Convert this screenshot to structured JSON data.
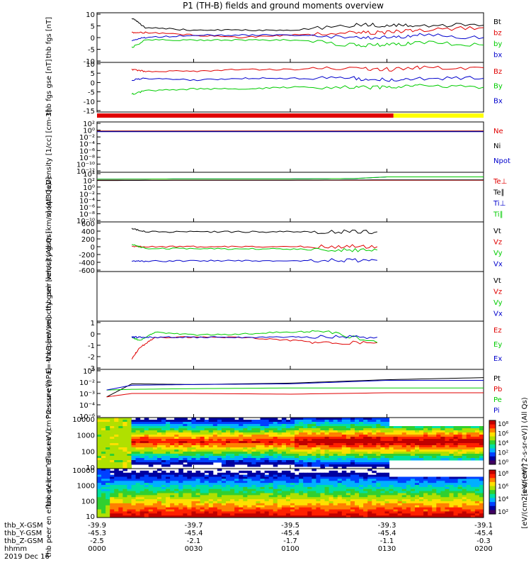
{
  "title": "P1 (TH-B) fields and ground moments overview",
  "time_axis": {
    "tick_labels": [
      "0000",
      "0030",
      "0100",
      "0130",
      "0200"
    ],
    "rows": [
      {
        "label": "thb_X-GSM",
        "values": [
          "-39.9",
          "-39.7",
          "-39.5",
          "-39.3",
          "-39.1"
        ]
      },
      {
        "label": "thb_Y-GSM",
        "values": [
          "-45.3",
          "-45.4",
          "-45.4",
          "-45.4",
          "-45.4"
        ]
      },
      {
        "label": "thb_Z-GSM",
        "values": [
          "-2.5",
          "-2.1",
          "-1.7",
          "-1.1",
          "-0.3"
        ]
      },
      {
        "label": "hhmm",
        "values": [
          "0000",
          "0030",
          "0100",
          "0130",
          "0200"
        ]
      }
    ],
    "date": "2019 Dec 16"
  },
  "colorbar": {
    "label": "[eV/(cm2-s-sr-eV)]",
    "label_top": "[eV/(cm^2-s-sr-eV)] (All Qs)",
    "ticks_top": [
      "10⁸",
      "10⁶",
      "10⁴",
      "10²",
      "10⁰"
    ],
    "ticks_bottom": [
      "10⁸",
      "10⁶",
      "10⁴",
      "10²"
    ]
  },
  "colors": {
    "black": "#000000",
    "red": "#e00000",
    "green": "#00cc00",
    "blue": "#0000cc",
    "yellow": "#ffff00"
  },
  "chart_data": [
    {
      "type": "line",
      "id": "panel-fgs-bt",
      "ylabel": "thb fgs [nT]",
      "ylim": [
        -10,
        10
      ],
      "yticks": [
        "10",
        "5",
        "0",
        "-5",
        "-10"
      ],
      "series": [
        {
          "name": "Bt",
          "color": "black",
          "x": [
            0.18,
            0.25,
            0.5,
            0.75,
            1.0,
            1.33,
            1.5,
            1.67,
            2.0
          ],
          "y": [
            8,
            4,
            3,
            3,
            3,
            5,
            5,
            5,
            5
          ]
        },
        {
          "name": "bz",
          "color": "red",
          "x": [
            0.18,
            0.25,
            0.5,
            0.75,
            1.0,
            1.33,
            1.5,
            1.67,
            2.0
          ],
          "y": [
            2,
            2,
            1,
            0,
            1,
            2,
            2,
            3,
            4
          ]
        },
        {
          "name": "by",
          "color": "green",
          "x": [
            0.18,
            0.25,
            0.5,
            0.75,
            1.0,
            1.33,
            1.5,
            1.67,
            2.0
          ],
          "y": [
            -4,
            -1,
            -1,
            -1,
            -1,
            -3,
            -3,
            -2,
            -3
          ]
        },
        {
          "name": "bx",
          "color": "blue",
          "x": [
            0.18,
            0.25,
            0.5,
            0.75,
            1.0,
            1.33,
            1.5,
            1.67,
            2.0
          ],
          "y": [
            -1,
            0,
            1,
            1,
            1,
            0,
            0,
            1,
            0
          ]
        }
      ]
    },
    {
      "type": "line",
      "id": "panel-fgs-gse",
      "ylabel": "thb fgs gse [nT]",
      "ylim": [
        -18,
        10
      ],
      "yticks": [
        "10",
        "5",
        "0",
        "-5",
        "-10",
        "-15"
      ],
      "series": [
        {
          "name": "Bz",
          "color": "red",
          "x": [
            0.18,
            0.25,
            0.5,
            0.75,
            1.0,
            1.33,
            1.5,
            1.67,
            2.0
          ],
          "y": [
            6,
            5,
            5,
            6,
            6,
            7,
            6,
            7,
            7
          ]
        },
        {
          "name": "By",
          "color": "green",
          "x": [
            0.18,
            0.25,
            0.5,
            0.75,
            1.0,
            1.33,
            1.5,
            1.67,
            2.0
          ],
          "y": [
            -8,
            -6,
            -5,
            -5,
            -4,
            -4,
            -4,
            -3,
            -4
          ]
        },
        {
          "name": "Bx",
          "color": "blue",
          "x": [
            0.18,
            0.25,
            0.5,
            0.75,
            1.0,
            1.33,
            1.5,
            1.67,
            2.0
          ],
          "y": [
            0,
            1,
            0,
            1,
            1,
            1,
            0,
            1,
            1
          ]
        }
      ]
    },
    {
      "type": "line",
      "id": "panel-density",
      "log": true,
      "ylabel": "Density [1/cc] [cm-3]",
      "ylim": [
        -12,
        3
      ],
      "yticks": [
        "10²",
        "10⁰",
        "10⁻²",
        "10⁻⁴",
        "10⁻⁶",
        "10⁻⁸",
        "10⁻¹⁰",
        "10⁻¹²"
      ],
      "series": [
        {
          "name": "Ne",
          "color": "red",
          "x": [
            0,
            0.5,
            1.0,
            1.5,
            2.0
          ],
          "y": [
            0.3,
            0.3,
            0.3,
            0.3,
            0.3
          ]
        },
        {
          "name": "Ni",
          "color": "black",
          "x": [
            0,
            0.5,
            1.0,
            1.5,
            2.0
          ],
          "y": [
            0.2,
            0.2,
            0.2,
            0.2,
            0.2
          ]
        },
        {
          "name": "Npot",
          "color": "blue",
          "x": [
            0,
            0.5,
            1.0,
            1.5,
            2.0
          ],
          "y": [
            0.1,
            0.1,
            0.1,
            0.1,
            0.1
          ]
        }
      ]
    },
    {
      "type": "line",
      "id": "panel-temperature",
      "log": true,
      "ylabel": "moqt3 [eV]",
      "ylim": [
        -10,
        5
      ],
      "yticks": [
        "10⁴",
        "10²",
        "10⁰",
        "10⁻²",
        "10⁻⁴",
        "10⁻⁶",
        "10⁻⁸",
        "10⁻¹⁰"
      ],
      "series": [
        {
          "name": "Te⊥",
          "color": "red",
          "x": [
            0,
            0.5,
            1.0,
            1.5,
            2.0
          ],
          "y": [
            2.6,
            2.6,
            2.6,
            2.6,
            2.6
          ]
        },
        {
          "name": "Te∥",
          "color": "black",
          "x": [
            0,
            0.5,
            1.0,
            1.5,
            2.0
          ],
          "y": [
            2.5,
            2.6,
            2.6,
            2.7,
            2.7
          ]
        },
        {
          "name": "Ti⊥",
          "color": "blue",
          "x": [
            0,
            0.5,
            1.0,
            1.33,
            1.5,
            2.0
          ],
          "y": [
            2.9,
            3.0,
            3.0,
            3.1,
            3.6,
            3.6
          ]
        },
        {
          "name": "Ti∥",
          "color": "green",
          "x": [
            0,
            0.5,
            1.0,
            1.33,
            1.5,
            2.0
          ],
          "y": [
            2.9,
            3.0,
            3.0,
            3.1,
            3.6,
            3.6
          ]
        }
      ]
    },
    {
      "type": "line",
      "id": "panel-peir-velocity",
      "ylabel": "thb peir velocity gsm [km/s] (All Qs)",
      "ylim": [
        -600,
        600
      ],
      "yticks": [
        "600",
        "400",
        "200",
        "0",
        "-200",
        "-400",
        "-600"
      ],
      "series": [
        {
          "name": "Vt",
          "color": "black",
          "x": [
            0.18,
            0.25,
            0.5,
            0.75,
            1.0,
            1.25,
            1.45
          ],
          "y": [
            440,
            360,
            360,
            360,
            360,
            360,
            360
          ]
        },
        {
          "name": "Vz",
          "color": "red",
          "x": [
            0.18,
            0.25,
            0.5,
            0.75,
            1.0,
            1.25,
            1.45
          ],
          "y": [
            10,
            0,
            0,
            0,
            0,
            10,
            0
          ]
        },
        {
          "name": "Vy",
          "color": "green",
          "x": [
            0.18,
            0.25,
            0.5,
            0.75,
            1.0,
            1.25,
            1.45
          ],
          "y": [
            60,
            -40,
            -50,
            -50,
            -60,
            -80,
            -80
          ]
        },
        {
          "name": "Vx",
          "color": "blue",
          "x": [
            0.18,
            0.25,
            0.5,
            0.75,
            1.0,
            1.25,
            1.45
          ],
          "y": [
            -340,
            -350,
            -340,
            -340,
            -340,
            -330,
            -330
          ]
        }
      ]
    },
    {
      "type": "line",
      "id": "panel-peer-velocity",
      "ylabel": "thb peer velocity gsm [km/s] (All Qs)",
      "series": [
        {
          "name": "Vt",
          "color": "black",
          "x": [],
          "y": []
        },
        {
          "name": "Vz",
          "color": "red",
          "x": [],
          "y": []
        },
        {
          "name": "Vy",
          "color": "green",
          "x": [],
          "y": []
        },
        {
          "name": "Vx",
          "color": "blue",
          "x": [],
          "y": []
        }
      ]
    },
    {
      "type": "line",
      "id": "panel-efield",
      "ylabel": "E=-V×B [mV/m]",
      "ylim": [
        -3,
        1.5
      ],
      "yticks": [
        "1",
        "0",
        "-1",
        "-2",
        "-3"
      ],
      "series": [
        {
          "name": "Ez",
          "color": "red",
          "x": [
            0.18,
            0.22,
            0.3,
            0.5,
            0.75,
            1.0,
            1.2,
            1.45
          ],
          "y": [
            -2,
            -1,
            0,
            0,
            0,
            -0.3,
            -0.5,
            -0.5
          ]
        },
        {
          "name": "Ey",
          "color": "green",
          "x": [
            0.18,
            0.22,
            0.3,
            0.5,
            0.75,
            1.0,
            1.2,
            1.45
          ],
          "y": [
            0,
            -0.3,
            0.5,
            0.2,
            0.3,
            0.5,
            0.5,
            -0.5
          ]
        },
        {
          "name": "Ex",
          "color": "blue",
          "x": [
            0.18,
            0.22,
            0.3,
            0.5,
            0.75,
            1.0,
            1.2,
            1.45
          ],
          "y": [
            0,
            0,
            0,
            0,
            0,
            0,
            0,
            0
          ]
        }
      ]
    },
    {
      "type": "line",
      "id": "panel-pressure",
      "log": true,
      "ylabel": "Pressure [nPa]",
      "ylim": [
        -6,
        1
      ],
      "yticks": [
        "10⁰",
        "10⁻²",
        "10⁻³",
        "10⁻⁴",
        "10⁻⁶"
      ],
      "series": [
        {
          "name": "Pt",
          "color": "black",
          "x": [
            0.05,
            0.18,
            0.5,
            1.0,
            1.5,
            2.0
          ],
          "y": [
            -3,
            -1.1,
            -1.2,
            -1.0,
            -0.5,
            -0.2
          ]
        },
        {
          "name": "Pb",
          "color": "red",
          "x": [
            0.05,
            0.18,
            0.5,
            1.0,
            1.5,
            2.0
          ],
          "y": [
            -3,
            -2.5,
            -2.5,
            -2.6,
            -2.4,
            -2.4
          ]
        },
        {
          "name": "Pe",
          "color": "green",
          "x": [
            0.05,
            0.18,
            0.5,
            1.0,
            1.5,
            2.0
          ],
          "y": [
            -2,
            -1.9,
            -1.8,
            -1.7,
            -1.7,
            -1.7
          ]
        },
        {
          "name": "Pi",
          "color": "blue",
          "x": [
            0.05,
            0.18,
            0.5,
            1.0,
            1.5,
            2.0
          ],
          "y": [
            -2,
            -1.3,
            -1.2,
            -1.1,
            -0.6,
            -0.6
          ]
        }
      ]
    },
    {
      "type": "heatmap",
      "id": "panel-peir-spec",
      "ylabel": "thb peir en eflux eV (cm^2-s-sr-eV)",
      "yticks": [
        "10000",
        "1000",
        "100",
        "10"
      ]
    },
    {
      "type": "heatmap",
      "id": "panel-peer-spec",
      "ylabel": "thb peer en eflux eV (cm^2-s-sr-eV)",
      "yticks": [
        "10000",
        "1000",
        "100",
        "10"
      ]
    }
  ]
}
